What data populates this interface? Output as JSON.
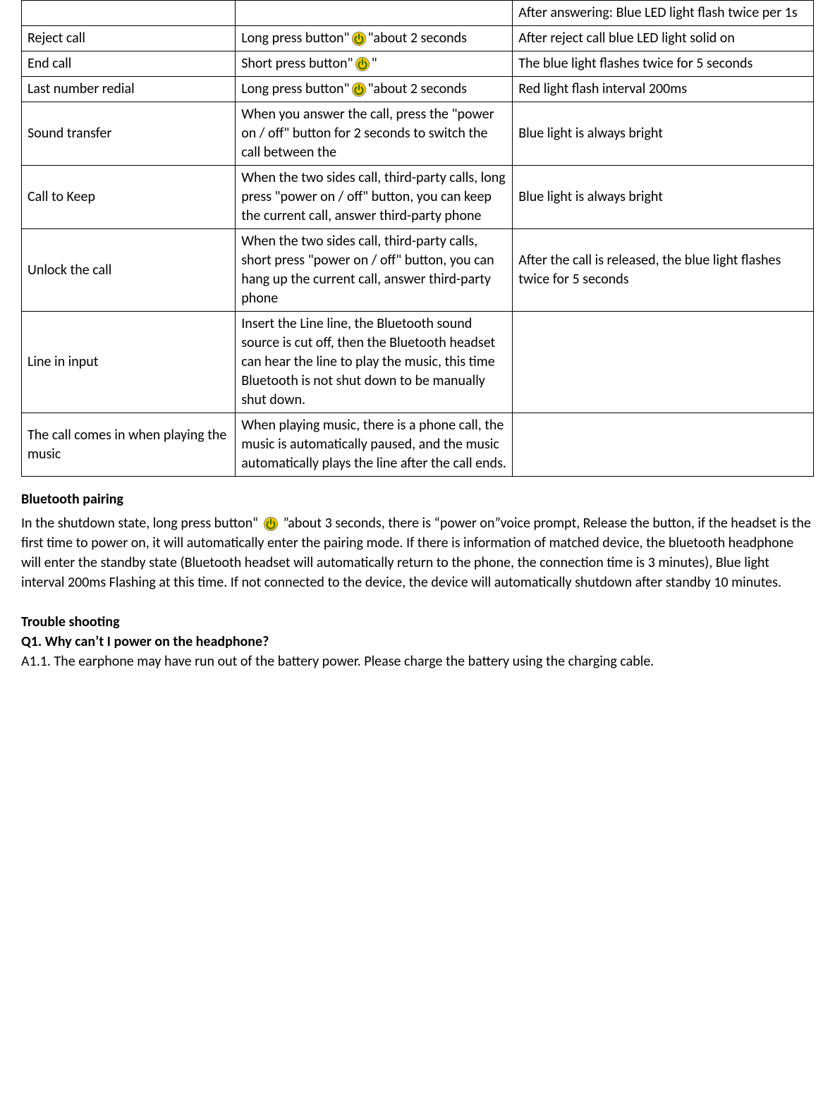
{
  "icon": {
    "outer_fill": "#f5c900",
    "outer_stroke": "#7a7a7a",
    "inner_symbol": "#2d6b00"
  },
  "table": {
    "rows": [
      {
        "c1": "",
        "c2": "",
        "c3": "After answering: Blue LED light flash twice per 1s",
        "c2_icon": false
      },
      {
        "c1": "Reject call",
        "c2_pre": "Long press button\"",
        "c2_post": "\"about 2 seconds",
        "c3": "After reject call blue LED light solid on",
        "c2_icon": true,
        "va_top": true
      },
      {
        "c1": "End call",
        "c2_pre": "Short press button\"",
        "c2_post": "\"",
        "c3": "The blue light flashes twice for 5 seconds",
        "c2_icon": true,
        "va_top": true
      },
      {
        "c1": "Last number redial",
        "c2_pre": "Long press button\"",
        "c2_post": "\"about 2 seconds",
        "c3": "Red light flash interval 200ms",
        "c2_icon": true
      },
      {
        "c1": "Sound transfer",
        "c2": "When you answer the call, press the \"power on / off\" button for 2 seconds to switch the call between the",
        "c3": "Blue light is always bright",
        "c2_icon": false
      },
      {
        "c1": "Call to Keep",
        "c2": "When the two sides call, third-party calls, long press \"power on / off\" button, you can keep the current call, answer third-party phone",
        "c3": "Blue light is always bright",
        "c2_icon": false
      },
      {
        "c1": "Unlock the call",
        "c2": "When the two sides call, third-party calls, short press \"power on / off\" button, you can hang up the current call, answer third-party phone",
        "c3": "After the call is released, the blue light flashes twice for 5 seconds",
        "c2_icon": false
      },
      {
        "c1": "Line in input",
        "c2": "Insert the Line line, the Bluetooth sound source is cut off, then the Bluetooth headset can hear the line to play the music, this time Bluetooth is not shut down to be manually shut down.",
        "c3": "",
        "c2_icon": false
      },
      {
        "c1": "The call comes in when playing the music",
        "c2": "When playing music, there is a phone call, the music is automatically paused, and the music automatically plays the line after the call ends.",
        "c3": "",
        "c2_icon": false
      }
    ]
  },
  "pairing": {
    "title": "Bluetooth pairing",
    "pre": "In the shutdown state, long press button“",
    "post": "”about 3 seconds, there is “power on”voice prompt, Release the button, if the headset is the first time to power on, it will automatically enter the pairing mode. If there is information of matched device, the bluetooth headphone will enter the standby state (Bluetooth headset will automatically return to the phone, the connection time is 3 minutes), Blue light interval 200ms Flashing at this time. If not connected to the device, the device will automatically shutdown after standby 10 minutes."
  },
  "trouble": {
    "title": "Trouble shooting",
    "q1": "Q1. Why can’t I power on the headphone?",
    "a1": "A1.1. The earphone may have run out of the battery power. Please charge the battery using the charging cable."
  }
}
